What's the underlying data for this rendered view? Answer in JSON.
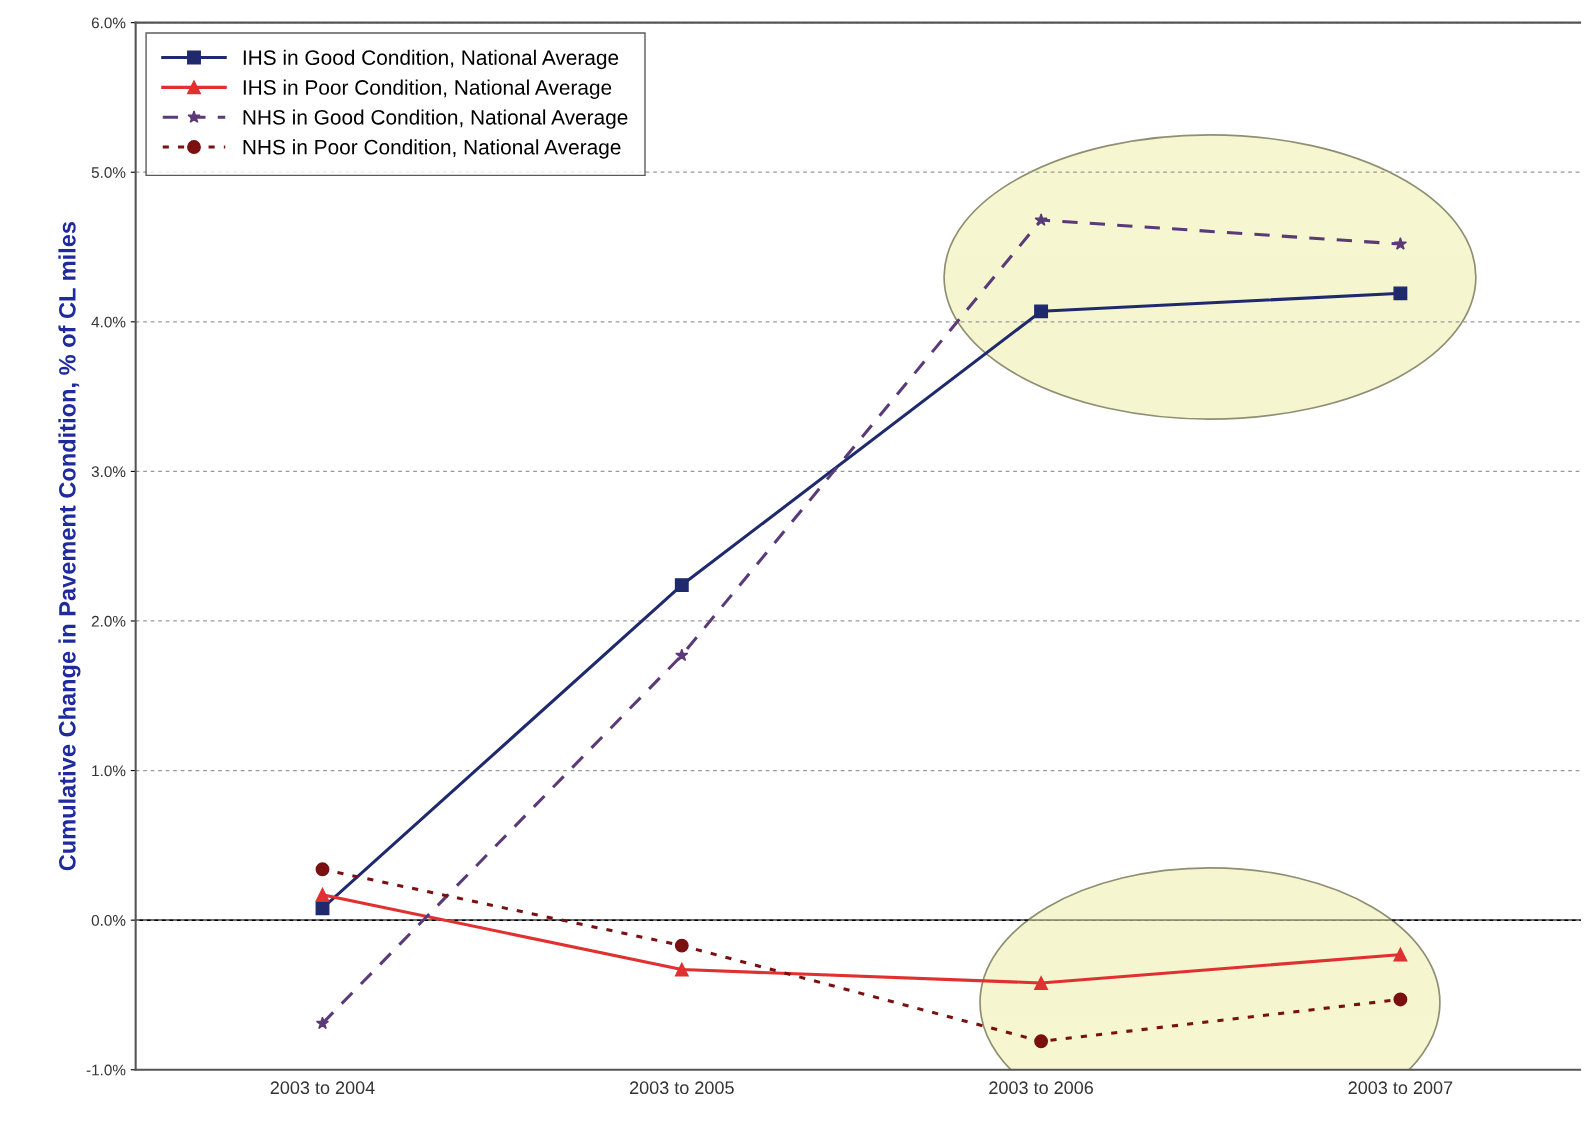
{
  "chart_data": {
    "type": "line",
    "ylabel": "Cumulative Change in Pavement Condition, % of CL miles",
    "categories": [
      "2003 to 2004",
      "2003 to 2005",
      "2003 to 2006",
      "2003 to 2007"
    ],
    "series": [
      {
        "name": "IHS in Good Condition, National Average",
        "color": "#1f2a6e",
        "marker": "square",
        "line_style": "solid",
        "values": [
          0.08,
          2.24,
          4.07,
          4.19
        ]
      },
      {
        "name": "IHS in Poor Condition, National Average",
        "color": "#e03030",
        "marker": "triangle",
        "line_style": "solid",
        "values": [
          0.17,
          -0.33,
          -0.42,
          -0.23
        ]
      },
      {
        "name": "NHS in Good Condition, National Average",
        "color": "#5a3a78",
        "marker": "star",
        "line_style": "dashed",
        "values": [
          -0.69,
          1.77,
          4.68,
          4.52
        ]
      },
      {
        "name": "NHS in Poor Condition, National Average",
        "color": "#7a1010",
        "marker": "circle",
        "line_style": "dotted",
        "values": [
          0.34,
          -0.17,
          -0.81,
          -0.53
        ]
      }
    ],
    "ylim": [
      -1,
      6
    ],
    "yticks": [
      {
        "value": -1,
        "label": "-1.0%"
      },
      {
        "value": 0,
        "label": "0.0%"
      },
      {
        "value": 1,
        "label": "1.0%"
      },
      {
        "value": 2,
        "label": "2.0%"
      },
      {
        "value": 3,
        "label": "3.0%"
      },
      {
        "value": 4,
        "label": "4.0%"
      },
      {
        "value": 5,
        "label": "5.0%"
      },
      {
        "value": 6,
        "label": "6.0%"
      }
    ],
    "grid": "y",
    "legend": "top left"
  }
}
